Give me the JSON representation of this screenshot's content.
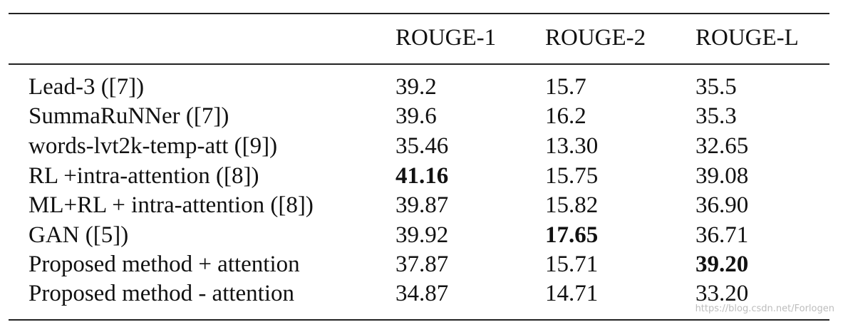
{
  "table": {
    "headers": [
      "ROUGE-1",
      "ROUGE-2",
      "ROUGE-L"
    ],
    "rows": [
      {
        "method": "Lead-3 ([7])",
        "rouge1": "39.2",
        "rouge2": "15.7",
        "rougeL": "35.5"
      },
      {
        "method": "SummaRuNNer ([7])",
        "rouge1": "39.6",
        "rouge2": "16.2",
        "rougeL": "35.3"
      },
      {
        "method": "words-lvt2k-temp-att ([9])",
        "rouge1": "35.46",
        "rouge2": "13.30",
        "rougeL": "32.65"
      },
      {
        "method": "RL +intra-attention ([8])",
        "rouge1": "41.16",
        "rouge2": "15.75",
        "rougeL": "39.08"
      },
      {
        "method": "ML+RL + intra-attention ([8])",
        "rouge1": "39.87",
        "rouge2": "15.82",
        "rougeL": "36.90"
      },
      {
        "method": "GAN ([5])",
        "rouge1": "39.92",
        "rouge2": "17.65",
        "rougeL": "36.71"
      },
      {
        "method": "Proposed method + attention",
        "rouge1": "37.87",
        "rouge2": "15.71",
        "rougeL": "39.20"
      },
      {
        "method": "Proposed method - attention",
        "rouge1": "34.87",
        "rouge2": "14.71",
        "rougeL": "33.20"
      }
    ]
  },
  "watermark": "https://blog.csdn.net/Forlogen"
}
